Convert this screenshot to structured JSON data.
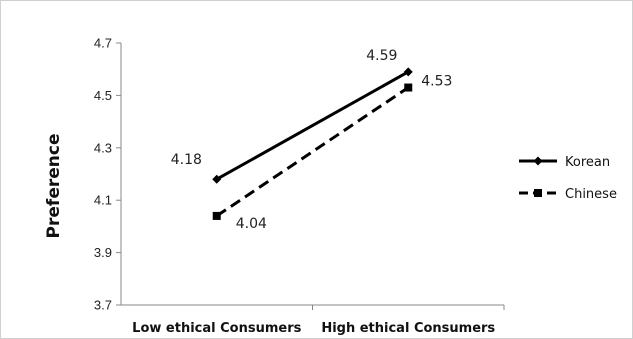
{
  "chart_data": {
    "type": "line",
    "title": "",
    "xlabel": "",
    "ylabel": "Preference",
    "categories": [
      "Low ethical Consumers",
      "High ethical Consumers"
    ],
    "ylim": [
      3.7,
      4.7
    ],
    "yticks": [
      "3.7",
      "3.9",
      "4.1",
      "4.3",
      "4.5",
      "4.7"
    ],
    "grid": false,
    "legend_position": "right",
    "series": [
      {
        "name": "Korean",
        "values": [
          4.18,
          4.59
        ],
        "labels": [
          "4.18",
          "4.59"
        ],
        "line_style": "solid",
        "marker": "diamond",
        "color": "#000000"
      },
      {
        "name": "Chinese",
        "values": [
          4.04,
          4.53
        ],
        "labels": [
          "4.04",
          "4.53"
        ],
        "line_style": "dashed",
        "marker": "square",
        "color": "#000000"
      }
    ]
  }
}
